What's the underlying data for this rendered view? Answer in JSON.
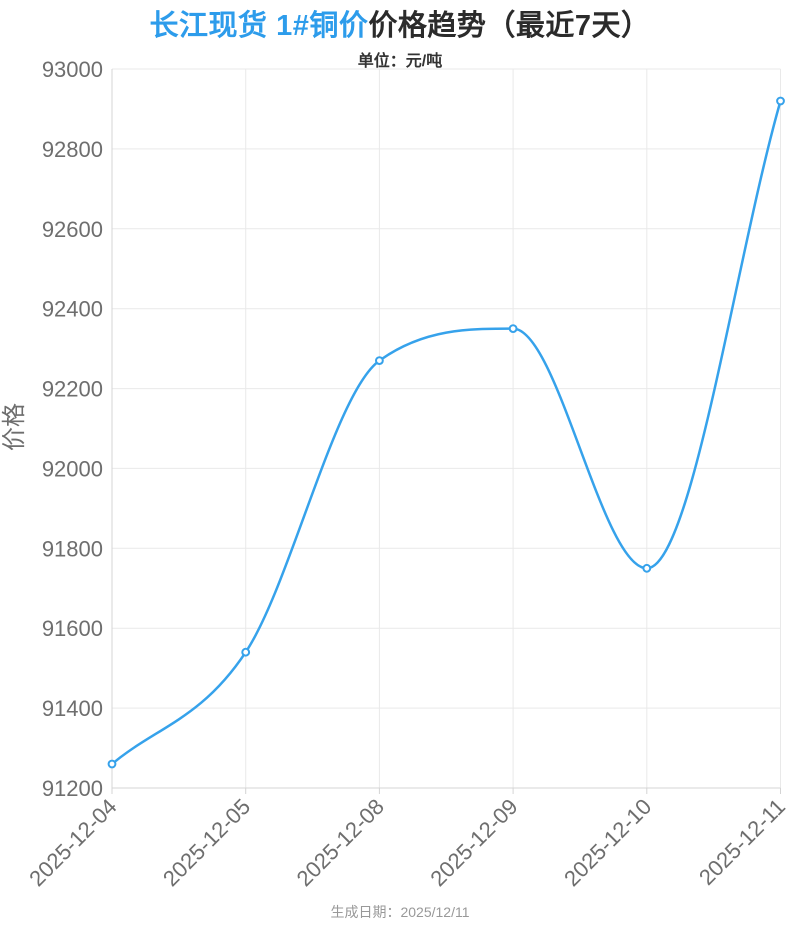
{
  "header": {
    "title_accent": "长江现货 1#铜价",
    "title_rest": "价格趋势（最近7天）",
    "subtitle": "单位：元/吨"
  },
  "footer": {
    "generated_date": "生成日期：2025/12/11"
  },
  "chart_data": {
    "type": "line",
    "title": "长江现货 1#铜价价格趋势（最近7天）",
    "subtitle": "单位：元/吨",
    "xlabel": "",
    "ylabel": "价格",
    "categories": [
      "2025-12-04",
      "2025-12-05",
      "2025-12-08",
      "2025-12-09",
      "2025-12-10",
      "2025-12-11"
    ],
    "values": [
      91260,
      91540,
      92270,
      92350,
      91750,
      92920
    ],
    "ylim": [
      91200,
      93000
    ],
    "ytick_step": 200,
    "grid": true,
    "legend_position": "none",
    "line_color": "#36a2eb",
    "marker_fill": "#ffffff",
    "accent_color": "#2d9ceb",
    "axis_text_color": "#6e6e6e",
    "grid_color": "#e9e9e9",
    "axis_line_color": "#d4d4d4"
  }
}
